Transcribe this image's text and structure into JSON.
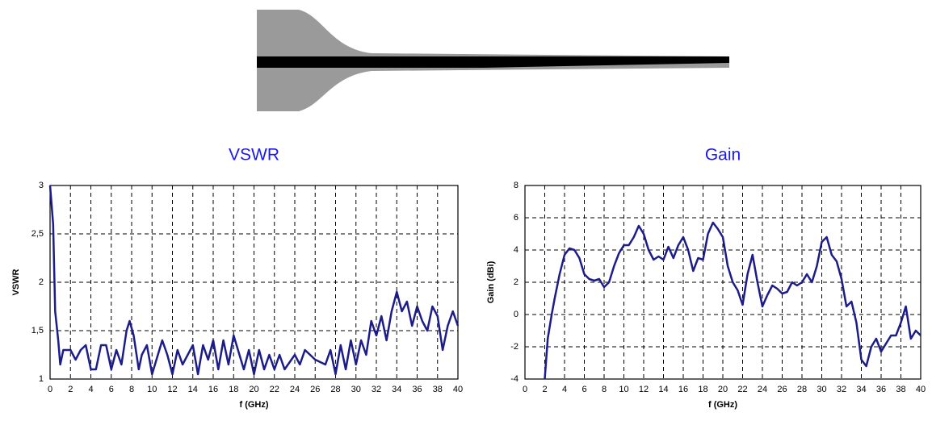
{
  "chart_data": [
    {
      "type": "line",
      "title": "VSWR",
      "xlabel": "f (GHz)",
      "ylabel": "VSWR",
      "color": "#1c1c8a",
      "grid": true,
      "xlim": [
        0,
        40
      ],
      "ylim": [
        1,
        3
      ],
      "xticks": [
        0,
        2,
        4,
        6,
        8,
        10,
        12,
        14,
        16,
        18,
        20,
        22,
        24,
        26,
        28,
        30,
        32,
        34,
        36,
        38,
        40
      ],
      "yticks": [
        1,
        {
          "value": 1.5,
          "label": "1,5"
        },
        2,
        {
          "value": 2.5,
          "label": "2,5"
        },
        3
      ],
      "x": [
        0,
        0.3,
        0.5,
        0.8,
        1,
        1.3,
        1.6,
        2,
        2.5,
        3,
        3.5,
        4,
        4.5,
        5,
        5.5,
        6,
        6.5,
        7,
        7.5,
        7.8,
        8.2,
        8.7,
        9,
        9.5,
        10,
        11,
        11.5,
        12,
        12.5,
        13,
        14,
        14.5,
        15,
        15.5,
        16,
        16.5,
        17,
        17.5,
        18,
        19,
        19.5,
        20,
        20.5,
        21,
        21.5,
        22,
        22.5,
        23,
        24,
        24.5,
        25,
        26,
        27,
        27.5,
        28,
        28.5,
        29,
        29.5,
        30,
        30.5,
        31,
        31.5,
        32,
        32.5,
        33,
        33.5,
        34,
        34.5,
        35,
        35.5,
        36,
        36.5,
        37,
        37.5,
        38,
        38.5,
        39,
        39.5,
        40
      ],
      "values": [
        3,
        2.6,
        1.7,
        1.4,
        1.15,
        1.3,
        1.3,
        1.3,
        1.2,
        1.3,
        1.35,
        1.1,
        1.1,
        1.35,
        1.35,
        1.1,
        1.3,
        1.15,
        1.5,
        1.6,
        1.45,
        1.1,
        1.25,
        1.35,
        1.05,
        1.4,
        1.25,
        1.05,
        1.3,
        1.15,
        1.35,
        1.05,
        1.35,
        1.2,
        1.4,
        1.1,
        1.4,
        1.15,
        1.45,
        1.1,
        1.3,
        1.05,
        1.3,
        1.1,
        1.25,
        1.1,
        1.25,
        1.1,
        1.25,
        1.15,
        1.3,
        1.2,
        1.15,
        1.3,
        1.05,
        1.35,
        1.1,
        1.4,
        1.15,
        1.4,
        1.25,
        1.6,
        1.45,
        1.65,
        1.4,
        1.7,
        1.9,
        1.7,
        1.8,
        1.55,
        1.75,
        1.6,
        1.5,
        1.75,
        1.65,
        1.3,
        1.55,
        1.7,
        1.55
      ]
    },
    {
      "type": "line",
      "title": "Gain",
      "xlabel": "f (GHz)",
      "ylabel": "Gain (dBi)",
      "color": "#1c1c8a",
      "grid": true,
      "xlim": [
        0,
        40
      ],
      "ylim": [
        -4,
        8
      ],
      "xticks": [
        0,
        2,
        4,
        6,
        8,
        10,
        12,
        14,
        16,
        18,
        20,
        22,
        24,
        26,
        28,
        30,
        32,
        34,
        36,
        38,
        40
      ],
      "yticks": [
        -4,
        -2,
        0,
        2,
        4,
        6,
        8
      ],
      "x": [
        2,
        2.3,
        2.7,
        3,
        3.5,
        4,
        4.5,
        5,
        5.5,
        6,
        6.5,
        7,
        7.5,
        8,
        8.5,
        9,
        9.5,
        10,
        10.5,
        11,
        11.5,
        12,
        12.5,
        13,
        13.5,
        14,
        14.5,
        15,
        15.5,
        16,
        16.5,
        17,
        17.5,
        18,
        18.5,
        19,
        19.5,
        20,
        20.5,
        21,
        21.5,
        22,
        22.5,
        23,
        23.5,
        24,
        24.5,
        25,
        25.5,
        26,
        26.5,
        27,
        27.5,
        28,
        28.5,
        29,
        29.5,
        30,
        30.5,
        31,
        31.5,
        32,
        32.5,
        33,
        33.5,
        34,
        34.5,
        35,
        35.5,
        36,
        36.5,
        37,
        37.5,
        38,
        38.5,
        39,
        39.5,
        40
      ],
      "values": [
        -4,
        -1.5,
        0,
        1,
        2.5,
        3.7,
        4.1,
        4,
        3.5,
        2.5,
        2.2,
        2.1,
        2.2,
        1.7,
        2,
        3,
        3.8,
        4.3,
        4.3,
        4.8,
        5.5,
        5,
        4,
        3.4,
        3.6,
        3.4,
        4.2,
        3.5,
        4.3,
        4.8,
        4,
        2.7,
        3.5,
        3.4,
        5,
        5.7,
        5.3,
        4.8,
        3,
        2,
        1.5,
        0.6,
        2.5,
        3.7,
        2,
        0.5,
        1.2,
        1.8,
        1.6,
        1.3,
        1.4,
        2,
        1.8,
        2,
        2.5,
        2,
        3,
        4.5,
        4.8,
        3.7,
        3.3,
        2.2,
        0.5,
        0.8,
        -0.5,
        -2.8,
        -3.2,
        -2,
        -1.5,
        -2.3,
        -1.8,
        -1.3,
        -1.3,
        -0.5,
        0.5,
        -1.5,
        -1,
        -1.3
      ]
    }
  ]
}
